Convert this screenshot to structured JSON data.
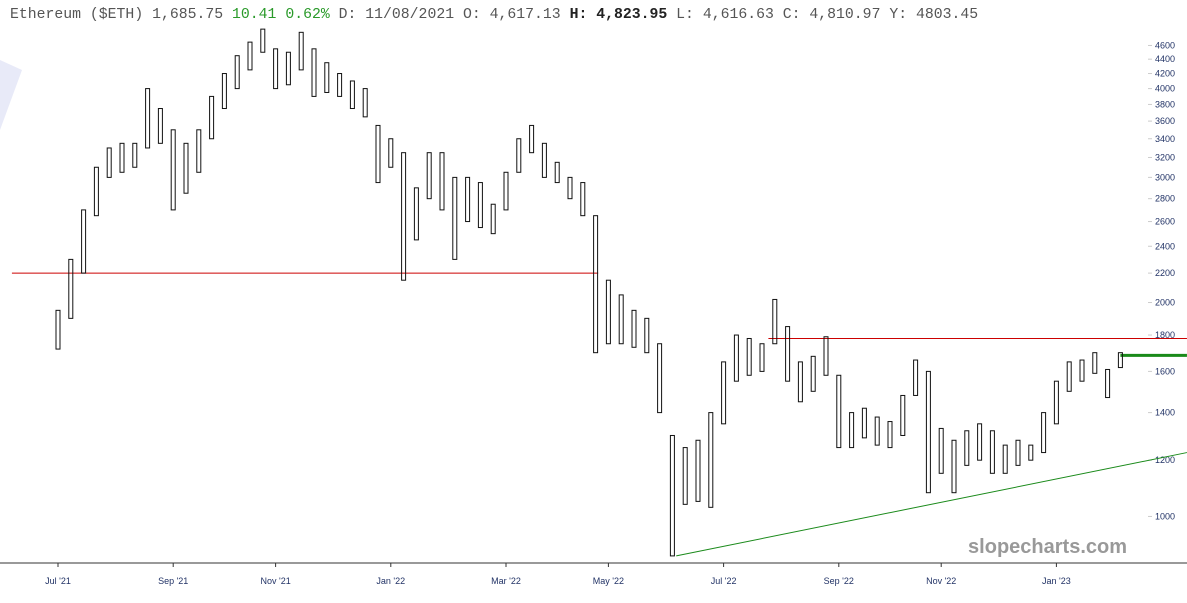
{
  "chart_data": {
    "type": "ohlc",
    "title": "Ethereum ($ETH)",
    "last": "1,685.75",
    "change": "10.41",
    "change_pct": "0.62%",
    "header_fields": [
      {
        "label": "D:",
        "value": "11/08/2021"
      },
      {
        "label": "O:",
        "value": "4,617.13"
      },
      {
        "label": "H:",
        "value": "4,823.95"
      },
      {
        "label": "L:",
        "value": "4,616.63"
      },
      {
        "label": "C:",
        "value": "4,810.97"
      },
      {
        "label": "Y:",
        "value": " 4803.45"
      }
    ],
    "watermark": "slopecharts.com",
    "color": "#111111",
    "log_scale": true,
    "ylim": [
      860,
      5330
    ],
    "yticks": [
      1000,
      1200,
      1400,
      1600,
      1800,
      2000,
      2200,
      2400,
      2600,
      2800,
      3000,
      3200,
      3400,
      3600,
      3800,
      4000,
      4200,
      4400,
      4600
    ],
    "categories": [
      "Jul '21",
      null,
      null,
      null,
      null,
      null,
      null,
      null,
      null,
      "Sep '21",
      null,
      null,
      null,
      null,
      null,
      null,
      null,
      "Nov '21",
      null,
      null,
      null,
      null,
      null,
      null,
      null,
      null,
      "Jan '22",
      null,
      null,
      null,
      null,
      null,
      null,
      null,
      null,
      "Mar '22",
      null,
      null,
      null,
      null,
      null,
      null,
      null,
      "May '22",
      null,
      null,
      null,
      null,
      null,
      null,
      null,
      null,
      "Jul '22",
      null,
      null,
      null,
      null,
      null,
      null,
      null,
      null,
      "Sep '22",
      null,
      null,
      null,
      null,
      null,
      null,
      null,
      "Nov '22",
      null,
      null,
      null,
      null,
      null,
      null,
      null,
      null,
      "Jan '23",
      null,
      null,
      null,
      null,
      null
    ],
    "high": [
      1950,
      2300,
      2700,
      3100,
      3300,
      3350,
      3350,
      4000,
      3750,
      3500,
      3350,
      3500,
      3900,
      4200,
      4450,
      4650,
      4850,
      4550,
      4500,
      4800,
      4550,
      4350,
      4200,
      4100,
      4000,
      3550,
      3400,
      3250,
      2900,
      3250,
      3250,
      3000,
      3000,
      2950,
      2750,
      3050,
      3400,
      3550,
      3350,
      3150,
      3000,
      2950,
      2650,
      2150,
      2050,
      1950,
      1900,
      1750,
      1300,
      1250,
      1280,
      1400,
      1650,
      1800,
      1780,
      1750,
      2020,
      1850,
      1650,
      1680,
      1790,
      1580,
      1400,
      1420,
      1380,
      1360,
      1480,
      1660,
      1600,
      1330,
      1280,
      1320,
      1350,
      1320,
      1260,
      1280,
      1260,
      1400,
      1550,
      1650,
      1660,
      1700,
      1610,
      1700
    ],
    "low": [
      1720,
      1900,
      2200,
      2650,
      3000,
      3050,
      3100,
      3300,
      3350,
      2700,
      2850,
      3050,
      3400,
      3750,
      4000,
      4250,
      4500,
      4000,
      4050,
      4250,
      3900,
      3950,
      3900,
      3750,
      3650,
      2950,
      3100,
      2150,
      2450,
      2800,
      2700,
      2300,
      2600,
      2550,
      2500,
      2700,
      3050,
      3250,
      3000,
      2950,
      2800,
      2650,
      1700,
      1750,
      1750,
      1730,
      1700,
      1400,
      880,
      1040,
      1050,
      1030,
      1350,
      1550,
      1580,
      1600,
      1750,
      1550,
      1450,
      1500,
      1580,
      1250,
      1250,
      1290,
      1260,
      1250,
      1300,
      1480,
      1080,
      1150,
      1080,
      1180,
      1200,
      1150,
      1150,
      1180,
      1200,
      1230,
      1350,
      1500,
      1550,
      1590,
      1470,
      1620
    ],
    "lines": [
      {
        "color": "#cc0000",
        "width": 1,
        "x": [
          -3.6,
          42.2
        ],
        "y": [
          2200,
          2200
        ]
      },
      {
        "color": "#cc0000",
        "width": 1,
        "x": [
          55.5,
          88.2
        ],
        "y": [
          1780,
          1780
        ]
      },
      {
        "color": "#1a8a1a",
        "width": 3,
        "x": [
          83,
          88.2
        ],
        "y": [
          1685,
          1685
        ]
      },
      {
        "color": "#1a8a1a",
        "width": 1,
        "x": [
          48.3,
          88.2
        ],
        "y": [
          880,
          1230
        ]
      }
    ]
  }
}
